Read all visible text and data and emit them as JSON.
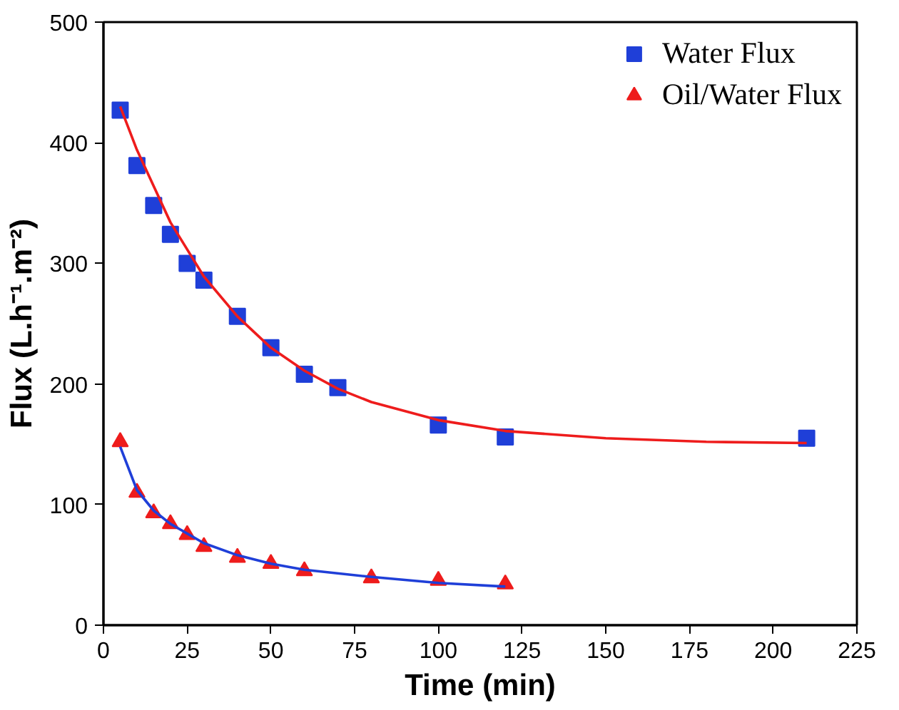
{
  "chart_data": {
    "type": "scatter",
    "xlabel": "Time (min)",
    "ylabel": "Flux (L.h⁻¹.m⁻²)",
    "xlim": [
      0,
      225
    ],
    "ylim": [
      0,
      500
    ],
    "xticks": [
      0,
      25,
      50,
      75,
      100,
      125,
      150,
      175,
      200,
      225
    ],
    "yticks": [
      0,
      100,
      200,
      300,
      400,
      500
    ],
    "grid": false,
    "legend": "top right",
    "series": [
      {
        "name": "Water Flux",
        "marker": "square",
        "color": "#1f3fd8",
        "x": [
          5,
          10,
          15,
          20,
          25,
          30,
          40,
          50,
          60,
          70,
          100,
          120,
          210
        ],
        "values": [
          427,
          381,
          348,
          324,
          300,
          286,
          256,
          230,
          208,
          197,
          166,
          156,
          155
        ]
      },
      {
        "name": "Oil/Water Flux",
        "marker": "triangle",
        "color": "#ee1c1c",
        "x": [
          5,
          10,
          15,
          20,
          25,
          30,
          40,
          50,
          60,
          80,
          100,
          120
        ],
        "values": [
          152,
          110,
          93,
          84,
          75,
          65,
          56,
          51,
          45,
          39,
          37,
          34
        ]
      },
      {
        "type": "line",
        "marker": "none",
        "line_style": "solid",
        "color": "#ee1c1c",
        "x": [
          5,
          10,
          20,
          30,
          40,
          50,
          60,
          70,
          80,
          100,
          120,
          150,
          180,
          210
        ],
        "values": [
          430,
          394,
          334,
          289,
          256,
          230,
          211,
          196,
          185,
          170,
          161,
          155,
          152,
          151
        ]
      },
      {
        "type": "line",
        "marker": "none",
        "line_style": "solid",
        "color": "#1f3fd8",
        "x": [
          5,
          10,
          15,
          20,
          30,
          40,
          50,
          60,
          80,
          100,
          120
        ],
        "values": [
          148,
          112,
          95,
          84,
          68,
          58,
          51,
          46,
          40,
          35,
          32
        ]
      }
    ]
  }
}
